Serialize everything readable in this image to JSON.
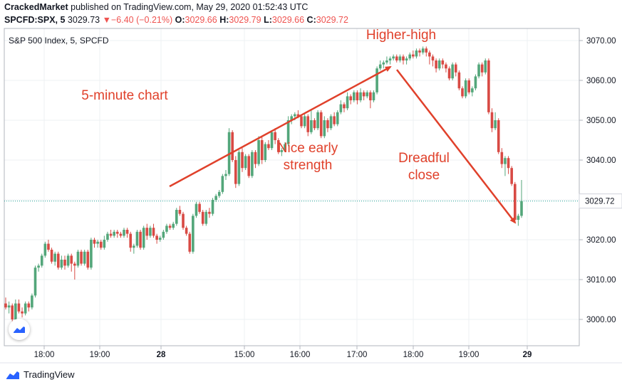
{
  "header": {
    "author": "CrackedMarket",
    "published_text": "published on TradingView.com, May 29, 2020 01:52:43 UTC",
    "symbol": "SPCFD:SPX, 5",
    "last": "3029.73",
    "change_arrow": "▼",
    "change": "−6.40 (−0.21%)",
    "o_label": "O:",
    "o_val": "3029.66",
    "h_label": "H:",
    "h_val": "3029.79",
    "l_label": "L:",
    "l_val": "3029.66",
    "c_label": "C:",
    "c_val": "3029.72"
  },
  "footer": {
    "brand": "TradingView",
    "logo_icon": "tradingview-logo-icon"
  },
  "colors": {
    "up": "#53a67a",
    "down": "#d84a44",
    "annotation": "#e0412b",
    "price_line": "#26a69a",
    "grid": "#eef0f3"
  },
  "chart_data": {
    "type": "candlestick",
    "legend": "S&P 500 Index, 5, SPCFD",
    "ylim": [
      2994,
      3072
    ],
    "y_ticks": [
      "3000.00",
      "3010.00",
      "3020.00",
      "3030.00",
      "3040.00",
      "3050.00",
      "3060.00",
      "3070.00"
    ],
    "x_ticks": [
      "18:00",
      "19:00",
      "28",
      "15:00",
      "16:00",
      "17:00",
      "18:00",
      "19:00",
      "29"
    ],
    "current_price": "3029.72",
    "candles": [
      [
        3004.0,
        3003.0,
        3005.5,
        3002.5
      ],
      [
        3003.0,
        3003.5,
        3004.5,
        3001.5
      ],
      [
        3003.5,
        3000.0,
        3004.0,
        2999.5
      ],
      [
        3000.0,
        3004.0,
        3005.0,
        2999.8
      ],
      [
        3004.0,
        3002.0,
        3005.0,
        3001.5
      ],
      [
        3002.0,
        3001.5,
        3003.0,
        3000.5
      ],
      [
        3001.5,
        3004.0,
        3004.5,
        3001.0
      ],
      [
        3004.0,
        3003.0,
        3004.5,
        3002.0
      ],
      [
        3003.0,
        3006.0,
        3006.5,
        3002.5
      ],
      [
        3006.0,
        3013.0,
        3013.5,
        3005.5
      ],
      [
        3013.0,
        3013.5,
        3014.0,
        3012.0
      ],
      [
        3013.5,
        3016.0,
        3016.5,
        3013.0
      ],
      [
        3016.0,
        3019.0,
        3019.5,
        3015.5
      ],
      [
        3019.0,
        3017.5,
        3020.0,
        3017.0
      ],
      [
        3017.5,
        3014.5,
        3018.0,
        3014.0
      ],
      [
        3014.5,
        3016.5,
        3017.0,
        3013.5
      ],
      [
        3016.5,
        3013.0,
        3017.0,
        3012.5
      ],
      [
        3013.0,
        3015.0,
        3016.0,
        3012.5
      ],
      [
        3015.0,
        3013.5,
        3016.0,
        3012.5
      ],
      [
        3013.5,
        3016.0,
        3016.5,
        3013.0
      ],
      [
        3016.0,
        3014.0,
        3016.5,
        3012.0
      ],
      [
        3014.0,
        3013.5,
        3014.5,
        3010.0
      ],
      [
        3013.5,
        3017.0,
        3017.5,
        3013.0
      ],
      [
        3017.0,
        3014.0,
        3017.5,
        3013.5
      ],
      [
        3014.0,
        3017.0,
        3017.5,
        3013.5
      ],
      [
        3017.0,
        3013.0,
        3017.5,
        3012.5
      ],
      [
        3013.0,
        3020.0,
        3020.5,
        3012.5
      ],
      [
        3020.0,
        3019.0,
        3020.5,
        3018.0
      ],
      [
        3019.0,
        3019.5,
        3020.0,
        3018.0
      ],
      [
        3019.5,
        3018.0,
        3020.0,
        3017.5
      ],
      [
        3018.0,
        3020.0,
        3021.0,
        3017.5
      ],
      [
        3020.0,
        3021.5,
        3022.0,
        3019.5
      ],
      [
        3021.5,
        3021.0,
        3022.5,
        3020.5
      ],
      [
        3021.0,
        3022.0,
        3022.5,
        3020.5
      ],
      [
        3022.0,
        3021.5,
        3022.5,
        3020.5
      ],
      [
        3021.5,
        3021.0,
        3022.0,
        3020.5
      ],
      [
        3021.0,
        3022.5,
        3023.0,
        3020.5
      ],
      [
        3022.5,
        3021.5,
        3023.0,
        3020.5
      ],
      [
        3021.5,
        3018.0,
        3022.0,
        3017.0
      ],
      [
        3018.0,
        3018.5,
        3019.0,
        3016.5
      ],
      [
        3018.5,
        3022.0,
        3022.5,
        3018.0
      ],
      [
        3022.0,
        3018.0,
        3022.5,
        3017.5
      ],
      [
        3018.0,
        3023.0,
        3023.5,
        3017.5
      ],
      [
        3023.0,
        3021.0,
        3024.0,
        3020.0
      ],
      [
        3021.0,
        3023.0,
        3023.5,
        3020.5
      ],
      [
        3023.0,
        3021.0,
        3024.0,
        3020.5
      ],
      [
        3021.0,
        3020.0,
        3021.5,
        3019.0
      ],
      [
        3020.0,
        3020.5,
        3021.0,
        3019.5
      ],
      [
        3020.5,
        3022.0,
        3022.5,
        3020.0
      ],
      [
        3022.0,
        3023.5,
        3024.0,
        3021.5
      ],
      [
        3023.5,
        3023.0,
        3024.0,
        3022.5
      ],
      [
        3023.0,
        3024.0,
        3024.5,
        3022.5
      ],
      [
        3024.0,
        3027.5,
        3028.0,
        3023.5
      ],
      [
        3027.5,
        3026.5,
        3028.5,
        3026.0
      ],
      [
        3026.5,
        3023.0,
        3027.0,
        3022.5
      ],
      [
        3023.0,
        3021.5,
        3023.5,
        3021.0
      ],
      [
        3021.5,
        3017.0,
        3022.0,
        3016.5
      ],
      [
        3017.0,
        3026.0,
        3026.5,
        3016.5
      ],
      [
        3026.0,
        3029.0,
        3029.5,
        3025.5
      ],
      [
        3029.0,
        3027.0,
        3029.5,
        3026.5
      ],
      [
        3027.0,
        3024.0,
        3027.5,
        3023.5
      ],
      [
        3024.0,
        3027.0,
        3027.5,
        3023.5
      ],
      [
        3027.0,
        3026.5,
        3028.0,
        3025.5
      ],
      [
        3026.5,
        3030.0,
        3030.5,
        3026.0
      ],
      [
        3030.0,
        3031.0,
        3031.5,
        3029.5
      ],
      [
        3031.0,
        3032.0,
        3032.5,
        3030.5
      ],
      [
        3032.0,
        3036.0,
        3036.5,
        3031.5
      ],
      [
        3036.0,
        3036.5,
        3037.5,
        3035.0
      ],
      [
        3036.5,
        3047.0,
        3048.0,
        3036.0
      ],
      [
        3047.0,
        3040.0,
        3047.5,
        3039.5
      ],
      [
        3040.0,
        3034.0,
        3041.0,
        3033.0
      ],
      [
        3034.0,
        3042.0,
        3042.5,
        3033.5
      ],
      [
        3042.0,
        3038.0,
        3043.0,
        3037.0
      ],
      [
        3038.0,
        3041.0,
        3041.5,
        3037.5
      ],
      [
        3041.0,
        3036.0,
        3041.5,
        3035.5
      ],
      [
        3036.0,
        3042.0,
        3042.5,
        3035.5
      ],
      [
        3042.0,
        3039.0,
        3042.5,
        3038.0
      ],
      [
        3039.0,
        3045.0,
        3046.0,
        3038.5
      ],
      [
        3045.0,
        3040.0,
        3046.0,
        3039.0
      ],
      [
        3040.0,
        3044.0,
        3044.5,
        3039.5
      ],
      [
        3044.0,
        3043.0,
        3045.0,
        3042.5
      ],
      [
        3043.0,
        3047.0,
        3047.5,
        3042.5
      ],
      [
        3047.0,
        3045.0,
        3048.0,
        3044.0
      ],
      [
        3045.0,
        3042.0,
        3045.5,
        3041.5
      ],
      [
        3042.0,
        3042.5,
        3043.0,
        3041.0
      ],
      [
        3042.5,
        3044.0,
        3044.5,
        3042.0
      ],
      [
        3044.0,
        3050.0,
        3051.0,
        3043.5
      ],
      [
        3050.0,
        3051.0,
        3051.5,
        3049.0
      ],
      [
        3051.0,
        3051.5,
        3052.0,
        3050.0
      ],
      [
        3051.5,
        3051.0,
        3052.5,
        3050.5
      ],
      [
        3051.0,
        3048.5,
        3051.5,
        3048.0
      ],
      [
        3048.5,
        3051.0,
        3051.5,
        3048.0
      ],
      [
        3051.0,
        3047.0,
        3051.5,
        3046.0
      ],
      [
        3047.0,
        3050.0,
        3052.5,
        3046.5
      ],
      [
        3050.0,
        3048.0,
        3050.5,
        3047.5
      ],
      [
        3048.0,
        3052.0,
        3052.5,
        3047.5
      ],
      [
        3052.0,
        3046.0,
        3052.5,
        3045.5
      ],
      [
        3046.0,
        3050.0,
        3051.0,
        3045.5
      ],
      [
        3050.0,
        3048.0,
        3050.5,
        3047.0
      ],
      [
        3048.0,
        3051.0,
        3051.5,
        3047.5
      ],
      [
        3051.0,
        3049.0,
        3052.0,
        3048.5
      ],
      [
        3049.0,
        3052.0,
        3052.5,
        3048.5
      ],
      [
        3052.0,
        3054.0,
        3055.0,
        3051.5
      ],
      [
        3054.0,
        3053.0,
        3054.5,
        3052.0
      ],
      [
        3053.0,
        3056.0,
        3057.0,
        3052.5
      ],
      [
        3056.0,
        3055.0,
        3056.5,
        3054.0
      ],
      [
        3055.0,
        3057.0,
        3057.5,
        3054.5
      ],
      [
        3057.0,
        3055.0,
        3057.5,
        3054.0
      ],
      [
        3055.0,
        3057.0,
        3058.0,
        3054.5
      ],
      [
        3057.0,
        3056.0,
        3057.5,
        3055.0
      ],
      [
        3056.0,
        3057.0,
        3057.5,
        3055.5
      ],
      [
        3057.0,
        3055.0,
        3057.5,
        3053.0
      ],
      [
        3055.0,
        3057.0,
        3057.5,
        3054.5
      ],
      [
        3057.0,
        3063.0,
        3063.5,
        3056.5
      ],
      [
        3063.0,
        3064.0,
        3065.0,
        3062.5
      ],
      [
        3064.0,
        3064.5,
        3065.0,
        3063.0
      ],
      [
        3064.5,
        3065.0,
        3066.0,
        3064.0
      ],
      [
        3065.0,
        3065.5,
        3066.0,
        3064.0
      ],
      [
        3065.5,
        3066.0,
        3066.5,
        3065.0
      ],
      [
        3066.0,
        3065.0,
        3066.5,
        3064.5
      ],
      [
        3065.0,
        3066.0,
        3066.5,
        3064.5
      ],
      [
        3066.0,
        3065.0,
        3066.5,
        3064.0
      ],
      [
        3065.0,
        3065.5,
        3066.0,
        3064.0
      ],
      [
        3065.5,
        3066.5,
        3067.0,
        3065.0
      ],
      [
        3066.5,
        3066.0,
        3067.5,
        3065.5
      ],
      [
        3066.0,
        3067.5,
        3068.0,
        3065.5
      ],
      [
        3067.5,
        3067.0,
        3068.0,
        3066.0
      ],
      [
        3067.0,
        3068.0,
        3068.5,
        3066.5
      ],
      [
        3068.0,
        3067.0,
        3068.5,
        3066.0
      ],
      [
        3067.0,
        3066.0,
        3067.5,
        3064.0
      ],
      [
        3066.0,
        3065.0,
        3066.5,
        3063.5
      ],
      [
        3065.0,
        3063.0,
        3065.5,
        3062.0
      ],
      [
        3063.0,
        3065.0,
        3065.5,
        3062.5
      ],
      [
        3065.0,
        3064.0,
        3065.5,
        3063.0
      ],
      [
        3064.0,
        3063.0,
        3064.5,
        3062.0
      ],
      [
        3063.0,
        3060.5,
        3063.5,
        3060.0
      ],
      [
        3060.5,
        3064.0,
        3064.5,
        3060.0
      ],
      [
        3064.0,
        3062.0,
        3064.5,
        3061.0
      ],
      [
        3062.0,
        3058.0,
        3062.5,
        3057.5
      ],
      [
        3058.0,
        3056.0,
        3058.5,
        3055.5
      ],
      [
        3056.0,
        3060.0,
        3060.5,
        3055.5
      ],
      [
        3060.0,
        3057.0,
        3060.5,
        3056.5
      ],
      [
        3057.0,
        3058.0,
        3058.5,
        3056.0
      ],
      [
        3058.0,
        3061.0,
        3061.5,
        3057.5
      ],
      [
        3061.0,
        3064.0,
        3064.5,
        3060.5
      ],
      [
        3064.0,
        3062.0,
        3064.5,
        3061.0
      ],
      [
        3062.0,
        3065.0,
        3065.5,
        3061.5
      ],
      [
        3065.0,
        3052.0,
        3065.5,
        3051.5
      ],
      [
        3052.0,
        3048.0,
        3053.0,
        3047.0
      ],
      [
        3048.0,
        3050.0,
        3052.0,
        3047.5
      ],
      [
        3050.0,
        3042.0,
        3050.5,
        3041.5
      ],
      [
        3042.0,
        3039.0,
        3043.0,
        3038.0
      ],
      [
        3039.0,
        3040.5,
        3041.0,
        3036.0
      ],
      [
        3040.5,
        3038.0,
        3041.0,
        3036.5
      ],
      [
        3038.0,
        3034.0,
        3038.5,
        3033.5
      ],
      [
        3034.0,
        3025.0,
        3034.5,
        3024.5
      ],
      [
        3025.0,
        3026.0,
        3026.5,
        3023.5
      ],
      [
        3026.0,
        3029.7,
        3035.0,
        3025.5
      ]
    ],
    "annotations": [
      {
        "text": "5-minute chart"
      },
      {
        "text": "Nice early strength"
      },
      {
        "text": "Higher-high"
      },
      {
        "text": "Dreadful close"
      }
    ]
  }
}
